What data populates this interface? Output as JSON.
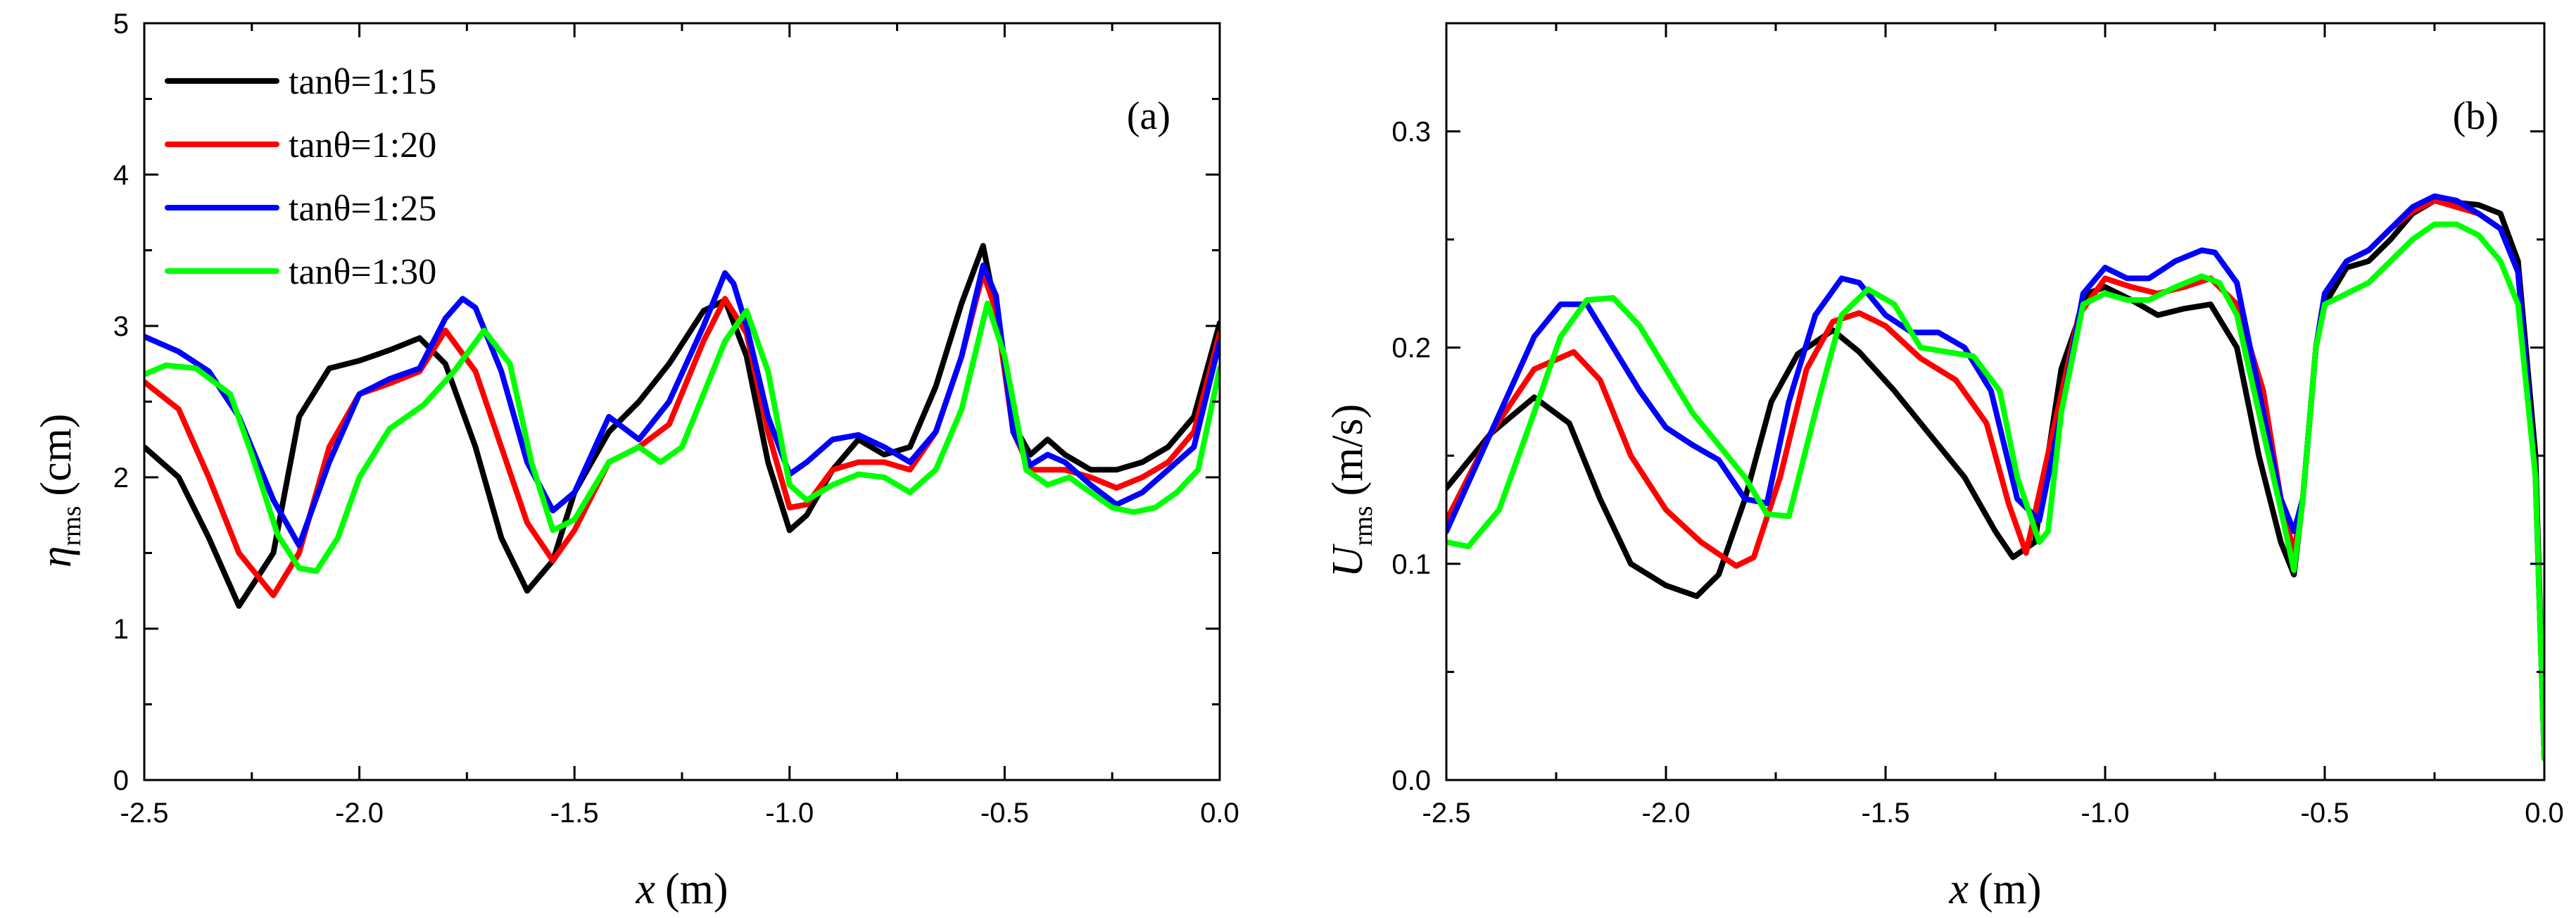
{
  "chart_data": [
    {
      "type": "line",
      "panel_label": "(a)",
      "ylabel_symbol": "η",
      "ylabel_sub": "rms",
      "ylabel_unit": "(cm)",
      "xlabel_symbol": "x",
      "xlabel_unit": "(m)",
      "xlim": [
        -2.5,
        0.0
      ],
      "ylim": [
        0,
        5
      ],
      "xticks": [
        -2.5,
        -2.0,
        -1.5,
        -1.0,
        -0.5,
        0.0
      ],
      "xtick_labels": [
        "-2.5",
        "-2.0",
        "-1.5",
        "-1.0",
        "-0.5",
        "0.0"
      ],
      "yticks": [
        0,
        1,
        2,
        3,
        4,
        5
      ],
      "ytick_labels": [
        "0",
        "1",
        "2",
        "3",
        "4",
        "5"
      ],
      "legend_position": "top-left",
      "series": [
        {
          "name": "tanθ=1:15",
          "color": "#000000",
          "x": [
            -2.5,
            -2.42,
            -2.35,
            -2.28,
            -2.2,
            -2.14,
            -2.07,
            -2.0,
            -1.93,
            -1.86,
            -1.8,
            -1.73,
            -1.67,
            -1.61,
            -1.55,
            -1.5,
            -1.42,
            -1.35,
            -1.28,
            -1.2,
            -1.15,
            -1.1,
            -1.05,
            -1.0,
            -0.96,
            -0.9,
            -0.84,
            -0.78,
            -0.72,
            -0.66,
            -0.6,
            -0.55,
            -0.52,
            -0.48,
            -0.44,
            -0.4,
            -0.36,
            -0.3,
            -0.24,
            -0.18,
            -0.12,
            -0.06,
            0.0
          ],
          "y": [
            2.2,
            2.0,
            1.6,
            1.15,
            1.5,
            2.4,
            2.72,
            2.77,
            2.84,
            2.92,
            2.75,
            2.2,
            1.6,
            1.25,
            1.45,
            1.9,
            2.3,
            2.5,
            2.75,
            3.1,
            3.17,
            2.8,
            2.1,
            1.65,
            1.75,
            2.05,
            2.25,
            2.15,
            2.2,
            2.6,
            3.15,
            3.53,
            3.1,
            2.35,
            2.15,
            2.25,
            2.15,
            2.05,
            2.05,
            2.1,
            2.2,
            2.4,
            3.02
          ]
        },
        {
          "name": "tanθ=1:20",
          "color": "#ff0000",
          "x": [
            -2.5,
            -2.42,
            -2.35,
            -2.28,
            -2.2,
            -2.14,
            -2.07,
            -2.0,
            -1.93,
            -1.86,
            -1.8,
            -1.73,
            -1.67,
            -1.61,
            -1.55,
            -1.5,
            -1.42,
            -1.35,
            -1.28,
            -1.2,
            -1.15,
            -1.1,
            -1.05,
            -1.0,
            -0.96,
            -0.9,
            -0.84,
            -0.78,
            -0.72,
            -0.66,
            -0.6,
            -0.55,
            -0.52,
            -0.48,
            -0.44,
            -0.4,
            -0.36,
            -0.3,
            -0.24,
            -0.18,
            -0.12,
            -0.06,
            0.0
          ],
          "y": [
            2.63,
            2.45,
            2.0,
            1.5,
            1.22,
            1.5,
            2.2,
            2.55,
            2.62,
            2.7,
            2.97,
            2.7,
            2.2,
            1.7,
            1.45,
            1.65,
            2.1,
            2.2,
            2.35,
            2.9,
            3.18,
            2.95,
            2.3,
            1.8,
            1.82,
            2.05,
            2.1,
            2.1,
            2.05,
            2.3,
            2.8,
            3.35,
            3.1,
            2.3,
            2.05,
            2.05,
            2.05,
            2.0,
            1.93,
            2.0,
            2.1,
            2.3,
            2.95
          ]
        },
        {
          "name": "tanθ=1:25",
          "color": "#0000ff",
          "x": [
            -2.5,
            -2.42,
            -2.35,
            -2.28,
            -2.2,
            -2.14,
            -2.07,
            -2.0,
            -1.93,
            -1.86,
            -1.8,
            -1.76,
            -1.73,
            -1.67,
            -1.61,
            -1.55,
            -1.5,
            -1.42,
            -1.35,
            -1.28,
            -1.2,
            -1.15,
            -1.13,
            -1.1,
            -1.05,
            -1.0,
            -0.96,
            -0.9,
            -0.84,
            -0.78,
            -0.72,
            -0.66,
            -0.6,
            -0.55,
            -0.52,
            -0.48,
            -0.44,
            -0.4,
            -0.36,
            -0.3,
            -0.24,
            -0.18,
            -0.12,
            -0.06,
            0.0
          ],
          "y": [
            2.93,
            2.83,
            2.7,
            2.4,
            1.85,
            1.55,
            2.1,
            2.55,
            2.65,
            2.72,
            3.05,
            3.18,
            3.12,
            2.7,
            2.1,
            1.78,
            1.9,
            2.4,
            2.25,
            2.5,
            3.0,
            3.35,
            3.28,
            3.0,
            2.4,
            2.02,
            2.1,
            2.25,
            2.28,
            2.2,
            2.1,
            2.3,
            2.8,
            3.4,
            3.2,
            2.3,
            2.08,
            2.15,
            2.1,
            1.95,
            1.82,
            1.9,
            2.05,
            2.2,
            2.9
          ]
        },
        {
          "name": "tanθ=1:30",
          "color": "#00ff00",
          "x": [
            -2.5,
            -2.45,
            -2.38,
            -2.3,
            -2.25,
            -2.19,
            -2.14,
            -2.1,
            -2.05,
            -2.0,
            -1.93,
            -1.85,
            -1.78,
            -1.71,
            -1.65,
            -1.6,
            -1.55,
            -1.5,
            -1.42,
            -1.35,
            -1.3,
            -1.25,
            -1.2,
            -1.15,
            -1.1,
            -1.05,
            -1.0,
            -0.96,
            -0.9,
            -0.84,
            -0.78,
            -0.72,
            -0.66,
            -0.6,
            -0.54,
            -0.5,
            -0.45,
            -0.4,
            -0.35,
            -0.3,
            -0.25,
            -0.2,
            -0.15,
            -0.1,
            -0.05,
            0.0
          ],
          "y": [
            2.68,
            2.74,
            2.72,
            2.55,
            2.15,
            1.62,
            1.4,
            1.38,
            1.6,
            2.0,
            2.32,
            2.48,
            2.7,
            2.97,
            2.75,
            2.1,
            1.65,
            1.72,
            2.1,
            2.2,
            2.1,
            2.2,
            2.55,
            2.9,
            3.1,
            2.7,
            1.95,
            1.85,
            1.95,
            2.02,
            2.0,
            1.9,
            2.05,
            2.45,
            3.15,
            2.8,
            2.05,
            1.95,
            2.0,
            1.9,
            1.8,
            1.77,
            1.8,
            1.9,
            2.05,
            2.72
          ]
        }
      ]
    },
    {
      "type": "line",
      "panel_label": "(b)",
      "ylabel_symbol": "U",
      "ylabel_sub": "rms",
      "ylabel_unit": "(m/s)",
      "xlabel_symbol": "x",
      "xlabel_unit": "(m)",
      "xlim": [
        -2.5,
        0.0
      ],
      "ylim": [
        0.0,
        0.35
      ],
      "xticks": [
        -2.5,
        -2.0,
        -1.5,
        -1.0,
        -0.5,
        0.0
      ],
      "xtick_labels": [
        "-2.5",
        "-2.0",
        "-1.5",
        "-1.0",
        "-0.5",
        "0.0"
      ],
      "yticks": [
        0.0,
        0.1,
        0.2,
        0.3
      ],
      "ytick_labels": [
        "0.0",
        "0.1",
        "0.2",
        "0.3"
      ],
      "series": [
        {
          "name": "tanθ=1:15",
          "color": "#000000",
          "x": [
            -2.5,
            -2.4,
            -2.3,
            -2.22,
            -2.15,
            -2.08,
            -2.0,
            -1.93,
            -1.88,
            -1.82,
            -1.76,
            -1.7,
            -1.62,
            -1.56,
            -1.48,
            -1.4,
            -1.32,
            -1.25,
            -1.21,
            -1.16,
            -1.1,
            -1.04,
            -1.0,
            -0.94,
            -0.88,
            -0.82,
            -0.76,
            -0.7,
            -0.65,
            -0.6,
            -0.57,
            -0.55,
            -0.52,
            -0.5,
            -0.45,
            -0.4,
            -0.35,
            -0.3,
            -0.25,
            -0.2,
            -0.15,
            -0.1,
            -0.06,
            -0.02,
            0.0
          ],
          "y": [
            0.135,
            0.16,
            0.177,
            0.165,
            0.13,
            0.1,
            0.09,
            0.085,
            0.095,
            0.13,
            0.175,
            0.197,
            0.208,
            0.198,
            0.18,
            0.16,
            0.14,
            0.115,
            0.103,
            0.11,
            0.19,
            0.225,
            0.228,
            0.222,
            0.215,
            0.218,
            0.22,
            0.2,
            0.15,
            0.11,
            0.095,
            0.13,
            0.2,
            0.22,
            0.237,
            0.24,
            0.25,
            0.262,
            0.268,
            0.267,
            0.266,
            0.262,
            0.24,
            0.15,
            0.01
          ]
        },
        {
          "name": "tanθ=1:20",
          "color": "#ff0000",
          "x": [
            -2.5,
            -2.4,
            -2.3,
            -2.21,
            -2.15,
            -2.08,
            -2.0,
            -1.92,
            -1.84,
            -1.8,
            -1.74,
            -1.68,
            -1.62,
            -1.56,
            -1.5,
            -1.42,
            -1.34,
            -1.27,
            -1.22,
            -1.18,
            -1.12,
            -1.06,
            -1.0,
            -0.94,
            -0.88,
            -0.82,
            -0.76,
            -0.7,
            -0.64,
            -0.6,
            -0.57,
            -0.55,
            -0.52,
            -0.5,
            -0.45,
            -0.4,
            -0.35,
            -0.3,
            -0.25,
            -0.2,
            -0.15,
            -0.1,
            -0.06,
            -0.02,
            0.0
          ],
          "y": [
            0.12,
            0.16,
            0.19,
            0.198,
            0.185,
            0.15,
            0.125,
            0.11,
            0.099,
            0.103,
            0.14,
            0.19,
            0.212,
            0.216,
            0.21,
            0.195,
            0.185,
            0.165,
            0.128,
            0.105,
            0.16,
            0.215,
            0.232,
            0.228,
            0.225,
            0.228,
            0.232,
            0.22,
            0.18,
            0.13,
            0.105,
            0.13,
            0.2,
            0.225,
            0.24,
            0.245,
            0.255,
            0.263,
            0.268,
            0.265,
            0.262,
            0.255,
            0.235,
            0.14,
            0.01
          ]
        },
        {
          "name": "tanθ=1:25",
          "color": "#0000ff",
          "x": [
            -2.5,
            -2.4,
            -2.3,
            -2.24,
            -2.18,
            -2.12,
            -2.06,
            -2.0,
            -1.94,
            -1.88,
            -1.82,
            -1.77,
            -1.72,
            -1.66,
            -1.6,
            -1.56,
            -1.5,
            -1.44,
            -1.38,
            -1.32,
            -1.26,
            -1.2,
            -1.15,
            -1.1,
            -1.05,
            -1.0,
            -0.95,
            -0.9,
            -0.84,
            -0.78,
            -0.75,
            -0.7,
            -0.65,
            -0.6,
            -0.57,
            -0.55,
            -0.52,
            -0.5,
            -0.45,
            -0.4,
            -0.35,
            -0.3,
            -0.25,
            -0.2,
            -0.15,
            -0.1,
            -0.06,
            -0.02,
            0.0
          ],
          "y": [
            0.115,
            0.16,
            0.205,
            0.22,
            0.22,
            0.2,
            0.18,
            0.163,
            0.155,
            0.148,
            0.13,
            0.128,
            0.175,
            0.215,
            0.232,
            0.23,
            0.215,
            0.207,
            0.207,
            0.2,
            0.18,
            0.13,
            0.12,
            0.17,
            0.225,
            0.237,
            0.232,
            0.232,
            0.24,
            0.245,
            0.244,
            0.23,
            0.18,
            0.13,
            0.115,
            0.13,
            0.2,
            0.225,
            0.24,
            0.245,
            0.255,
            0.265,
            0.27,
            0.268,
            0.262,
            0.255,
            0.235,
            0.14,
            0.01
          ]
        },
        {
          "name": "tanθ=1:30",
          "color": "#00ff00",
          "x": [
            -2.5,
            -2.45,
            -2.38,
            -2.3,
            -2.24,
            -2.18,
            -2.12,
            -2.06,
            -2.0,
            -1.94,
            -1.88,
            -1.82,
            -1.77,
            -1.72,
            -1.66,
            -1.6,
            -1.54,
            -1.48,
            -1.42,
            -1.36,
            -1.3,
            -1.24,
            -1.2,
            -1.15,
            -1.13,
            -1.1,
            -1.05,
            -1.0,
            -0.95,
            -0.9,
            -0.84,
            -0.78,
            -0.74,
            -0.7,
            -0.65,
            -0.6,
            -0.57,
            -0.55,
            -0.52,
            -0.5,
            -0.45,
            -0.4,
            -0.35,
            -0.3,
            -0.25,
            -0.2,
            -0.15,
            -0.1,
            -0.06,
            -0.02,
            0.0
          ],
          "y": [
            0.11,
            0.108,
            0.125,
            0.17,
            0.205,
            0.222,
            0.223,
            0.21,
            0.19,
            0.17,
            0.155,
            0.14,
            0.123,
            0.122,
            0.17,
            0.215,
            0.227,
            0.22,
            0.2,
            0.198,
            0.196,
            0.18,
            0.14,
            0.11,
            0.115,
            0.17,
            0.22,
            0.225,
            0.222,
            0.222,
            0.228,
            0.233,
            0.23,
            0.215,
            0.17,
            0.125,
            0.097,
            0.13,
            0.2,
            0.22,
            0.225,
            0.23,
            0.24,
            0.25,
            0.257,
            0.257,
            0.252,
            0.24,
            0.22,
            0.14,
            0.01
          ]
        }
      ]
    }
  ]
}
